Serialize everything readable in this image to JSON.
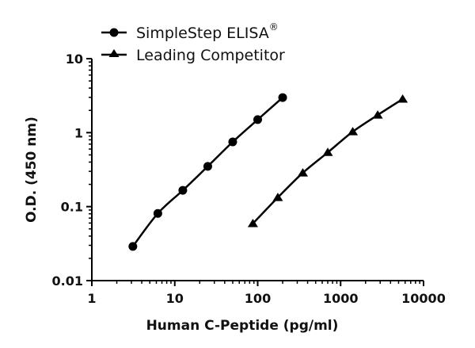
{
  "chart_data": {
    "type": "line",
    "title": "",
    "xlabel": "Human C-Peptide (pg/ml)",
    "ylabel": "O.D. (450 nm)",
    "xscale": "log",
    "yscale": "log",
    "xlim": [
      1,
      10000
    ],
    "ylim": [
      0.01,
      10
    ],
    "xticks": [
      1,
      10,
      100,
      1000,
      10000
    ],
    "xtick_labels": [
      "1",
      "10",
      "100",
      "1000",
      "10000"
    ],
    "yticks": [
      0.01,
      0.1,
      1,
      10
    ],
    "ytick_labels": [
      "0.01",
      "0.1",
      "1",
      "10"
    ],
    "grid": false,
    "legend_position": "top-left, above plot",
    "series": [
      {
        "name": "SimpleStep ELISA®",
        "marker": "circle",
        "color": "#000000",
        "x": [
          3.125,
          6.25,
          12.5,
          25,
          50,
          100,
          200
        ],
        "y": [
          0.029,
          0.081,
          0.166,
          0.35,
          0.75,
          1.5,
          2.98
        ]
      },
      {
        "name": "Leading Competitor",
        "marker": "triangle",
        "color": "#000000",
        "x": [
          87.5,
          175,
          350,
          700,
          1400,
          2800,
          5600
        ],
        "y": [
          0.059,
          0.133,
          0.286,
          0.54,
          1.03,
          1.73,
          2.84
        ]
      }
    ]
  },
  "legend": {
    "items": [
      {
        "label": "SimpleStep ELISA",
        "superscript": "®",
        "marker": "circle"
      },
      {
        "label": "Leading Competitor",
        "superscript": "",
        "marker": "triangle"
      }
    ]
  },
  "axes": {
    "x_title": "Human C-Peptide (pg/ml)",
    "y_title": "O.D. (450 nm)"
  }
}
